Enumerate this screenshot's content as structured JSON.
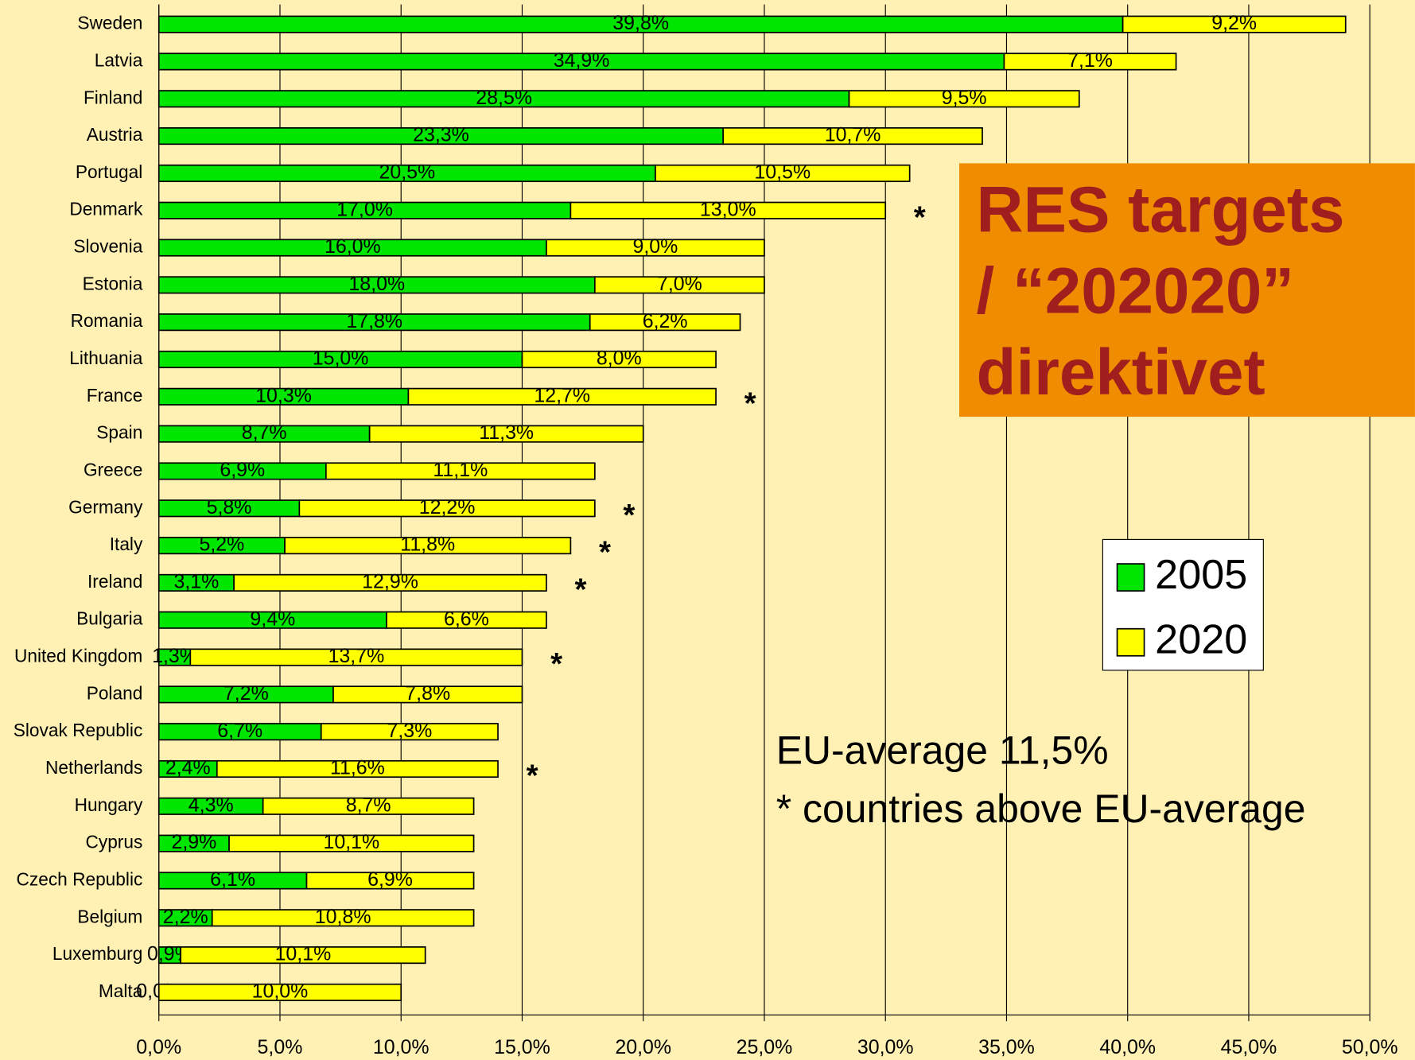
{
  "chart_data": {
    "type": "stacked_bar_horizontal",
    "title_lines": [
      "RES targets",
      "/ “202020”",
      "direktivet"
    ],
    "notes": [
      "EU-average 11,5%",
      "* countries above EU-average"
    ],
    "categories": [
      "Sweden",
      "Latvia",
      "Finland",
      "Austria",
      "Portugal",
      "Denmark",
      "Slovenia",
      "Estonia",
      "Romania",
      "Lithuania",
      "France",
      "Spain",
      "Greece",
      "Germany",
      "Italy",
      "Ireland",
      "Bulgaria",
      "United Kingdom",
      "Poland",
      "Slovak Republic",
      "Netherlands",
      "Hungary",
      "Cyprus",
      "Czech Republic",
      "Belgium",
      "Luxemburg",
      "Malta"
    ],
    "stars": [
      null,
      null,
      null,
      null,
      null,
      "*",
      null,
      null,
      null,
      null,
      "*",
      null,
      null,
      "*",
      "*",
      "*",
      null,
      "*",
      null,
      null,
      "*",
      null,
      null,
      null,
      null,
      null,
      null
    ],
    "series": [
      {
        "name": "2005",
        "color": "#00e600",
        "values": [
          39.8,
          34.9,
          28.5,
          23.3,
          20.5,
          17.0,
          16.0,
          18.0,
          17.8,
          15.0,
          10.3,
          8.7,
          6.9,
          5.8,
          5.2,
          3.1,
          9.4,
          1.3,
          7.2,
          6.7,
          2.4,
          4.3,
          2.9,
          6.1,
          2.2,
          0.9,
          0.0
        ],
        "value_labels": [
          "39,8%",
          "34,9%",
          "28,5%",
          "23,3%",
          "20,5%",
          "17,0%",
          "16,0%",
          "18,0%",
          "17,8%",
          "15,0%",
          "10,3%",
          "8,7%",
          "6,9%",
          "5,8%",
          "5,2%",
          "3,1%",
          "9,4%",
          "1,3%",
          "7,2%",
          "6,7%",
          "2,4%",
          "4,3%",
          "2,9%",
          "6,1%",
          "2,2%",
          "0,9%",
          "0,0%"
        ]
      },
      {
        "name": "2020",
        "color": "#ffff00",
        "values": [
          9.2,
          7.1,
          9.5,
          10.7,
          10.5,
          13.0,
          9.0,
          7.0,
          6.2,
          8.0,
          12.7,
          11.3,
          11.1,
          12.2,
          11.8,
          12.9,
          6.6,
          13.7,
          7.8,
          7.3,
          11.6,
          8.7,
          10.1,
          6.9,
          10.8,
          10.1,
          10.0
        ],
        "value_labels": [
          "9,2%",
          "7,1%",
          "9,5%",
          "10,7%",
          "10,5%",
          "13,0%",
          "9,0%",
          "7,0%",
          "6,2%",
          "8,0%",
          "12,7%",
          "11,3%",
          "11,1%",
          "12,2%",
          "11,8%",
          "12,9%",
          "6,6%",
          "13,7%",
          "7,8%",
          "7,3%",
          "11,6%",
          "8,7%",
          "10,1%",
          "6,9%",
          "10,8%",
          "10,1%",
          "10,0%"
        ]
      }
    ],
    "xlim": [
      0,
      50
    ],
    "xticks": [
      {
        "value": 0,
        "label": "0,0%"
      },
      {
        "value": 5,
        "label": "5,0%"
      },
      {
        "value": 10,
        "label": "10,0%"
      },
      {
        "value": 15,
        "label": "15,0%"
      },
      {
        "value": 20,
        "label": "20,0%"
      },
      {
        "value": 25,
        "label": "25,0%"
      },
      {
        "value": 30,
        "label": "30,0%"
      },
      {
        "value": 35,
        "label": "35,0%"
      },
      {
        "value": 40,
        "label": "40,0%"
      },
      {
        "value": 45,
        "label": "45,0%"
      },
      {
        "value": 50,
        "label": "50,0%"
      }
    ],
    "grid": true,
    "legend": "right"
  }
}
